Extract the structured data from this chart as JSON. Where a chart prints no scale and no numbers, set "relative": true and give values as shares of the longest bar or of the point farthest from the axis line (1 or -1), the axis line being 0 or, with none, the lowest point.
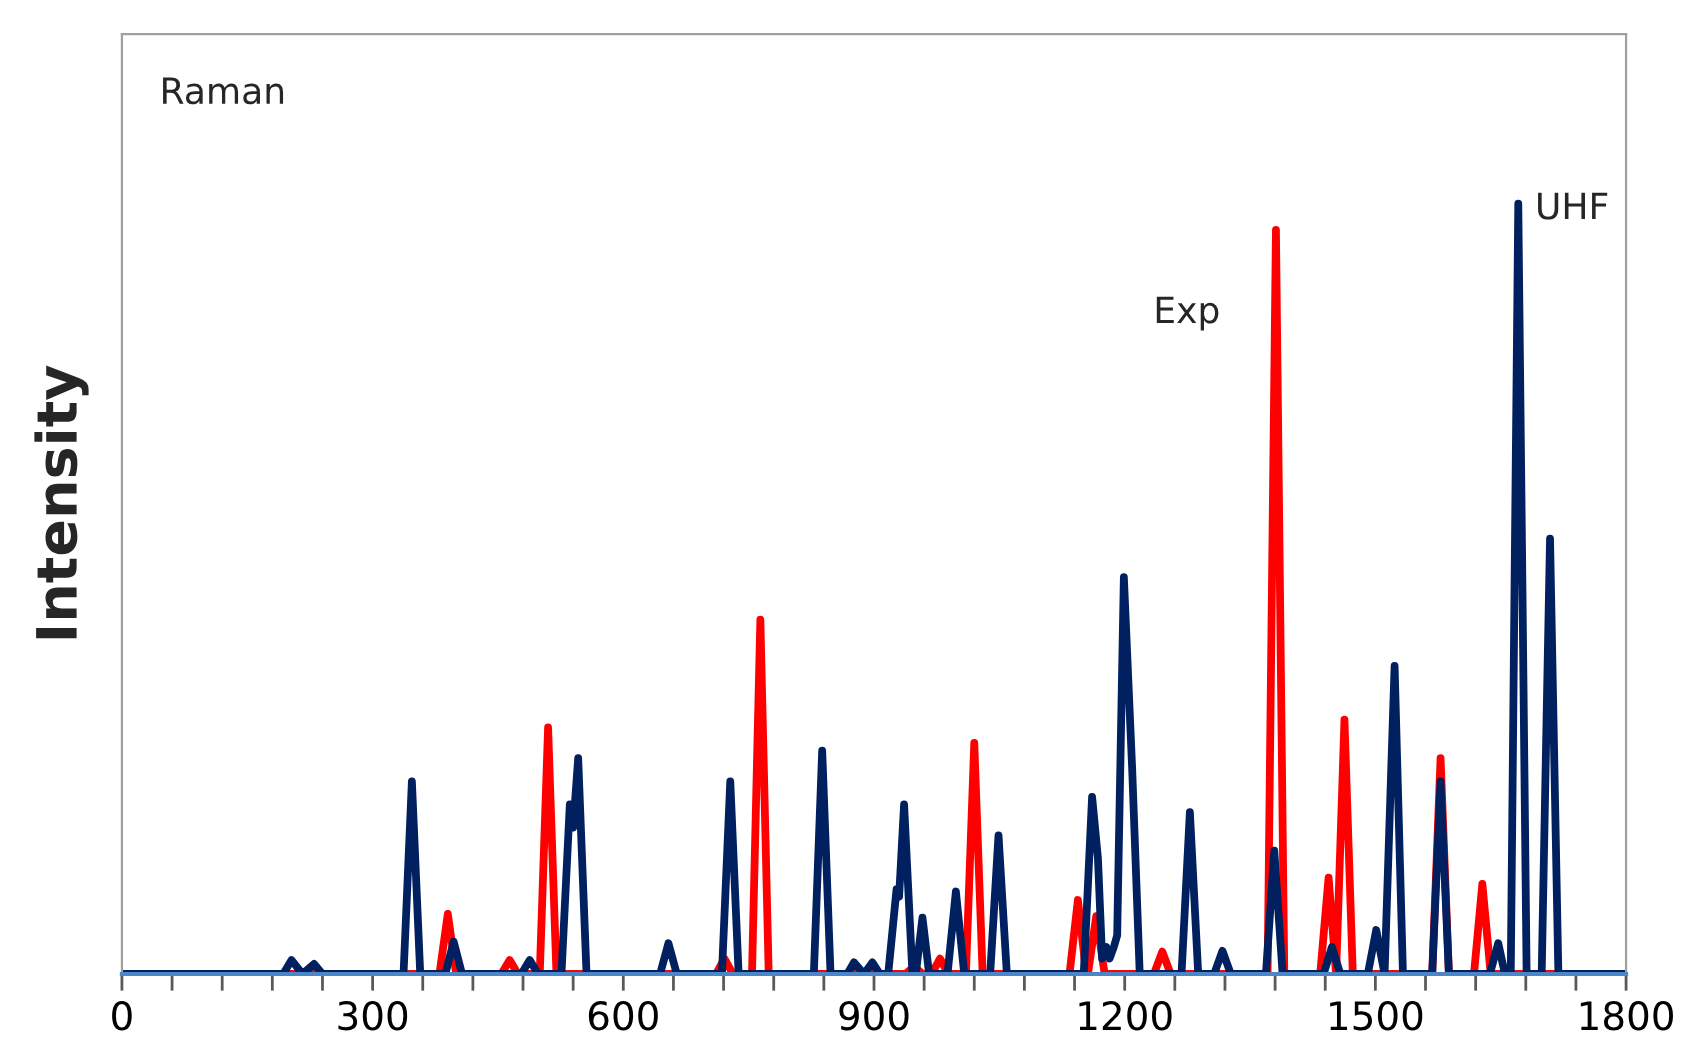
{
  "chart_data": {
    "type": "line",
    "ylabel": "Intensity",
    "annotations": [
      "Raman"
    ],
    "relative": true,
    "xlim": [
      0,
      1800
    ],
    "xticks": [
      0,
      {
        "value": 60,
        "label": null
      },
      {
        "value": 120,
        "label": null
      },
      {
        "value": 180,
        "label": null
      },
      {
        "value": 240,
        "label": null
      },
      300,
      {
        "value": 360,
        "label": null
      },
      {
        "value": 420,
        "label": null
      },
      {
        "value": 480,
        "label": null
      },
      {
        "value": 540,
        "label": null
      },
      600,
      {
        "value": 660,
        "label": null
      },
      {
        "value": 720,
        "label": null
      },
      {
        "value": 780,
        "label": null
      },
      {
        "value": 840,
        "label": null
      },
      900,
      {
        "value": 960,
        "label": null
      },
      {
        "value": 1020,
        "label": null
      },
      {
        "value": 1080,
        "label": null
      },
      {
        "value": 1140,
        "label": null
      },
      1200,
      {
        "value": 1260,
        "label": null
      },
      {
        "value": 1320,
        "label": null
      },
      {
        "value": 1380,
        "label": null
      },
      {
        "value": 1440,
        "label": null
      },
      1500,
      {
        "value": 1560,
        "label": null
      },
      {
        "value": 1620,
        "label": null
      },
      {
        "value": 1680,
        "label": null
      },
      {
        "value": 1740,
        "label": null
      },
      1800
    ],
    "grid": false,
    "legend": false,
    "marker": "none",
    "line_style": "solid",
    "series": [
      {
        "name": "Exp",
        "color": "#ff0000",
        "x": [
          0,
          380,
          390,
          400,
          454,
          464,
          474,
          500,
          510,
          520,
          711,
          721,
          731,
          754,
          764,
          774,
          938,
          948,
          958,
          969,
          979,
          989,
          1010,
          1020,
          1030,
          1134,
          1144,
          1154,
          1156,
          1166,
          1176,
          1235,
          1245,
          1255,
          1371,
          1381,
          1391,
          1434,
          1444,
          1453,
          1463,
          1473,
          1568,
          1578,
          1588,
          1618,
          1628,
          1638,
          1800
        ],
        "values": [
          0,
          0,
          0.078,
          0,
          0,
          0.018,
          0,
          0,
          0.32,
          0,
          0,
          0.02,
          0,
          0,
          0.46,
          0,
          0,
          0.01,
          0,
          0,
          0.02,
          0,
          0,
          0.3,
          0,
          0,
          0.096,
          0,
          0,
          0.075,
          0,
          0,
          0.029,
          0,
          0,
          0.966,
          0,
          0,
          0.125,
          0,
          0.33,
          0,
          0,
          0.28,
          0,
          0,
          0.117,
          0,
          0
        ]
      },
      {
        "name": "UHF",
        "color": "#002060",
        "x": [
          0,
          193,
          203,
          216,
          230,
          240,
          337,
          347,
          357,
          387,
          397,
          407,
          478,
          488,
          498,
          526,
          536,
          540,
          546,
          556,
          644,
          654,
          664,
          718,
          728,
          738,
          828,
          838,
          848,
          868,
          876,
          888,
          898,
          907,
          917,
          927,
          930,
          936,
          946,
          950,
          958,
          966,
          988,
          998,
          1008,
          1039,
          1049,
          1059,
          1151,
          1161,
          1168,
          1173,
          1178,
          1182,
          1187,
          1191,
          1199,
          1209,
          1218,
          1268,
          1278,
          1288,
          1307,
          1317,
          1327,
          1369,
          1379,
          1389,
          1438,
          1448,
          1458,
          1491,
          1501,
          1511,
          1523,
          1533,
          1568,
          1578,
          1588,
          1637,
          1647,
          1655,
          1662,
          1671,
          1681,
          1699,
          1709,
          1719,
          1800
        ],
        "values": [
          0,
          0,
          0.018,
          0,
          0.013,
          0,
          0,
          0.25,
          0,
          0,
          0.042,
          0,
          0,
          0.018,
          0,
          0,
          0.22,
          0.19,
          0.28,
          0,
          0,
          0.04,
          0,
          0,
          0.25,
          0,
          0,
          0.29,
          0,
          0,
          0.015,
          0,
          0.015,
          0,
          0,
          0.11,
          0.1,
          0.22,
          0,
          0,
          0.073,
          0,
          0,
          0.107,
          0,
          0,
          0.18,
          0,
          0,
          0.23,
          0.15,
          0.02,
          0.035,
          0.02,
          0.035,
          0.05,
          0.515,
          0.265,
          0,
          0,
          0.21,
          0,
          0,
          0.03,
          0,
          0,
          0.16,
          0,
          0,
          0.035,
          0,
          0,
          0.057,
          0,
          0.4,
          0,
          0,
          0.25,
          0,
          0,
          0.04,
          0,
          0,
          1,
          0,
          0,
          0.565,
          0,
          0
        ]
      }
    ]
  }
}
